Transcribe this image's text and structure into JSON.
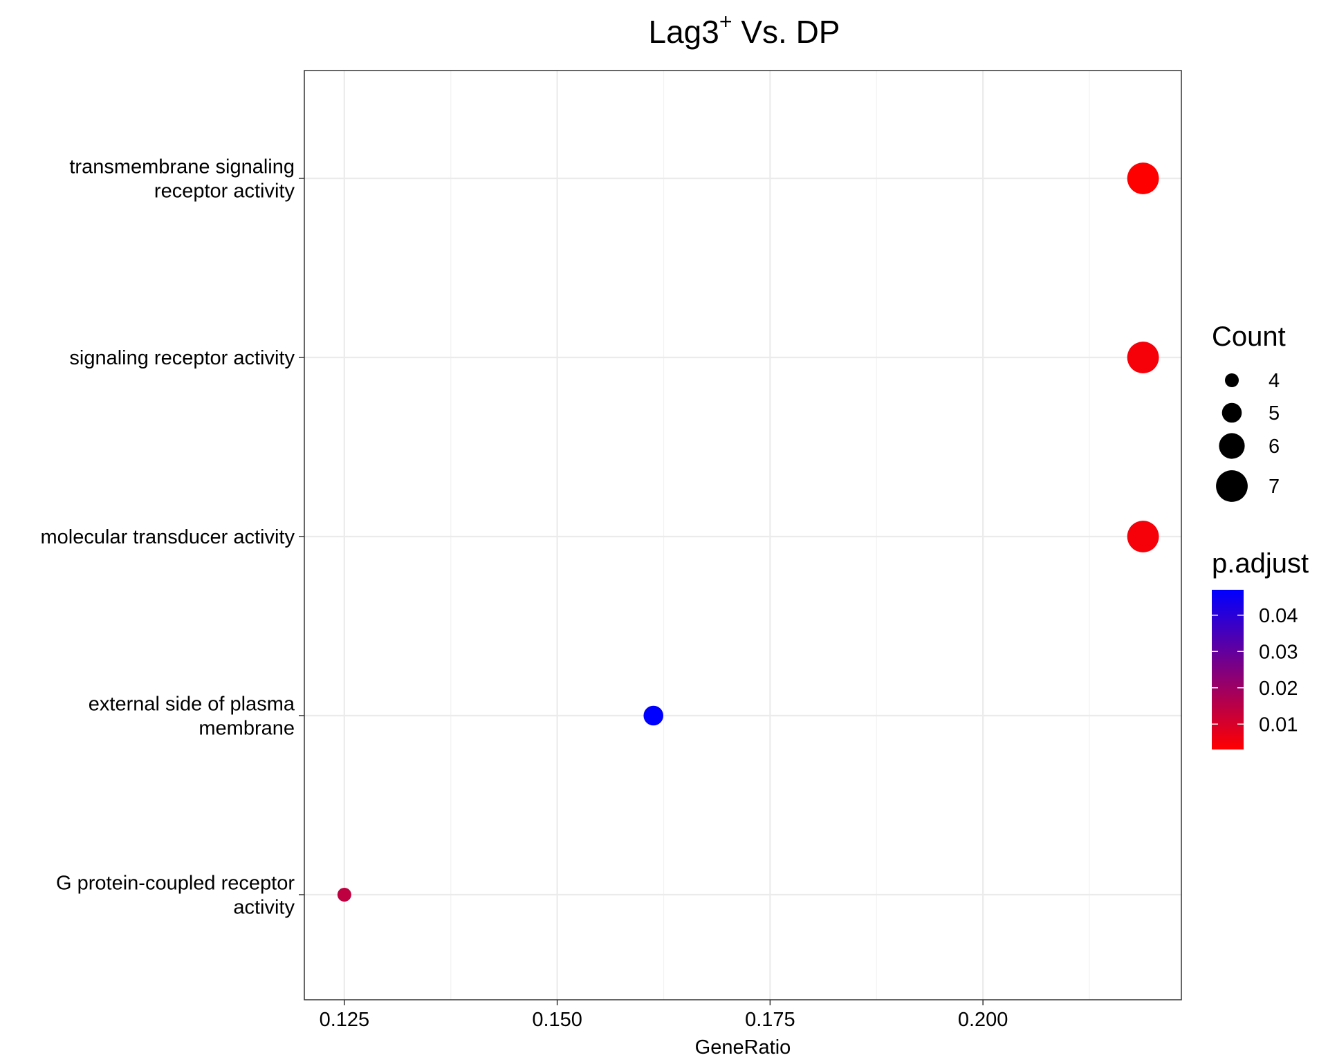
{
  "chart_data": {
    "type": "scatter",
    "title_main": "Lag3",
    "title_sup": "+",
    "title_rest": " Vs. DP",
    "xlabel": "GeneRatio",
    "ylabel": "",
    "xlim": [
      0.1203,
      0.2233
    ],
    "x_ticks": [
      0.125,
      0.15,
      0.175,
      0.2
    ],
    "x_tick_labels": [
      "0.125",
      "0.150",
      "0.175",
      "0.200"
    ],
    "categories": [
      [
        "transmembrane signaling",
        "receptor activity"
      ],
      [
        "signaling receptor activity"
      ],
      [
        "molecular transducer activity"
      ],
      [
        "external side of plasma",
        "membrane"
      ],
      [
        "G protein-coupled receptor",
        "activity"
      ]
    ],
    "points": [
      {
        "category_index": 0,
        "x": 0.2188,
        "count": 7,
        "p_adjust": 0.003
      },
      {
        "category_index": 1,
        "x": 0.2188,
        "count": 7,
        "p_adjust": 0.0045
      },
      {
        "category_index": 2,
        "x": 0.2188,
        "count": 7,
        "p_adjust": 0.0045
      },
      {
        "category_index": 3,
        "x": 0.1613,
        "count": 5,
        "p_adjust": 0.047
      },
      {
        "category_index": 4,
        "x": 0.125,
        "count": 4,
        "p_adjust": 0.014
      }
    ],
    "grid": true,
    "legend_placement": "right",
    "size_legend": {
      "title": "Count",
      "values": [
        4,
        5,
        6,
        7
      ],
      "labels": [
        "4",
        "5",
        "6",
        "7"
      ]
    },
    "color_legend": {
      "title": "p.adjust",
      "range": [
        0.003,
        0.047
      ],
      "ticks": [
        0.04,
        0.03,
        0.02,
        0.01
      ],
      "tick_labels": [
        "0.04",
        "0.03",
        "0.02",
        "0.01"
      ],
      "low_color": "#ff0000",
      "high_color": "#0000ff"
    }
  }
}
